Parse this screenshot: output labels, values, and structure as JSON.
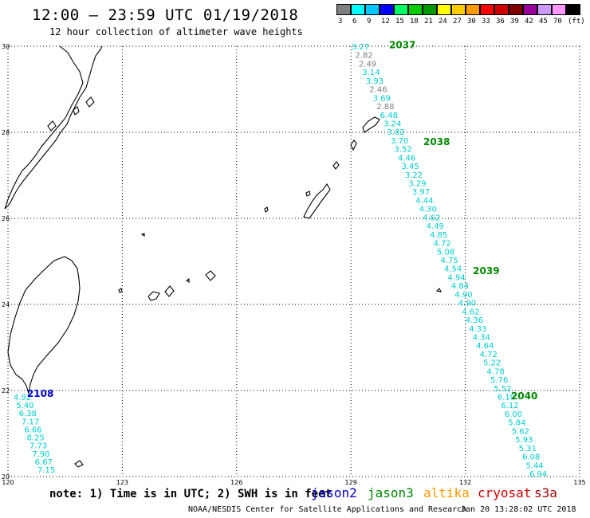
{
  "header": {
    "title": "12:00 — 23:59 UTC 01/19/2018",
    "subtitle": "12 hour collection of altimeter wave heights"
  },
  "legend": {
    "unit": "(ft)",
    "bins": [
      {
        "label": "3",
        "color": "#808080"
      },
      {
        "label": "6",
        "color": "#00ffff"
      },
      {
        "label": "9",
        "color": "#00c8ff"
      },
      {
        "label": "12",
        "color": "#0000ff"
      },
      {
        "label": "15",
        "color": "#00ff66"
      },
      {
        "label": "18",
        "color": "#00cc00"
      },
      {
        "label": "21",
        "color": "#009900"
      },
      {
        "label": "24",
        "color": "#ffff00"
      },
      {
        "label": "27",
        "color": "#ffcc00"
      },
      {
        "label": "30",
        "color": "#ff9900"
      },
      {
        "label": "33",
        "color": "#ff0000"
      },
      {
        "label": "36",
        "color": "#cc0000"
      },
      {
        "label": "39",
        "color": "#800000"
      },
      {
        "label": "42",
        "color": "#990099"
      },
      {
        "label": "45",
        "color": "#cc99ff"
      },
      {
        "label": "70",
        "color": "#ff99ff"
      },
      {
        "label": "",
        "color": "#000000"
      }
    ]
  },
  "map": {
    "lon_range": [
      120,
      135
    ],
    "lat_range": [
      20,
      30
    ],
    "lon_ticks": [
      "120",
      "123",
      "126",
      "129",
      "132",
      "135"
    ],
    "lat_ticks": [
      "30",
      "28",
      "26",
      "24",
      "22",
      "20"
    ],
    "track_colors": {
      "jason2": "#0000cc",
      "jason3": "#008800",
      "swh_cyan": "#00cccc",
      "swh_gray": "#808080"
    },
    "time_labels": [
      {
        "text": "2037",
        "lon": 130.0,
        "lat": 29.95,
        "track": "jason3"
      },
      {
        "text": "2038",
        "lon": 130.9,
        "lat": 27.7,
        "track": "jason3"
      },
      {
        "text": "2039",
        "lon": 132.2,
        "lat": 24.7,
        "track": "jason3"
      },
      {
        "text": "2040",
        "lon": 133.2,
        "lat": 21.8,
        "track": "jason3"
      },
      {
        "text": "2108",
        "lon": 120.5,
        "lat": 21.85,
        "track": "jason2"
      }
    ],
    "swh_track_1": [
      {
        "v": "3.27",
        "c": "cyan"
      },
      {
        "v": "2.82",
        "c": "gray"
      },
      {
        "v": "2.49",
        "c": "gray"
      },
      {
        "v": "3.14",
        "c": "cyan"
      },
      {
        "v": "3.93",
        "c": "cyan"
      },
      {
        "v": "2.46",
        "c": "gray"
      },
      {
        "v": "3.69",
        "c": "cyan"
      },
      {
        "v": "2.88",
        "c": "gray"
      },
      {
        "v": "6.48",
        "c": "cyan"
      },
      {
        "v": "3.24",
        "c": "cyan"
      },
      {
        "v": "3.82",
        "c": "cyan"
      },
      {
        "v": "3.70",
        "c": "cyan"
      },
      {
        "v": "3.52",
        "c": "cyan"
      },
      {
        "v": "4.46",
        "c": "cyan"
      },
      {
        "v": "3.45",
        "c": "cyan"
      },
      {
        "v": "3.22",
        "c": "cyan"
      },
      {
        "v": "3.29",
        "c": "cyan"
      },
      {
        "v": "3.97",
        "c": "cyan"
      },
      {
        "v": "4.44",
        "c": "cyan"
      },
      {
        "v": "4.30",
        "c": "cyan"
      },
      {
        "v": "4.62",
        "c": "cyan"
      },
      {
        "v": "4.49",
        "c": "cyan"
      },
      {
        "v": "4.85",
        "c": "cyan"
      },
      {
        "v": "4.72",
        "c": "cyan"
      },
      {
        "v": "5.08",
        "c": "cyan"
      },
      {
        "v": "4.75",
        "c": "cyan"
      },
      {
        "v": "4.54",
        "c": "cyan"
      },
      {
        "v": "4.94",
        "c": "cyan"
      },
      {
        "v": "4.84",
        "c": "cyan"
      },
      {
        "v": "4.90",
        "c": "cyan"
      },
      {
        "v": "4.90",
        "c": "cyan"
      },
      {
        "v": "4.62",
        "c": "cyan"
      },
      {
        "v": "4.36",
        "c": "cyan"
      },
      {
        "v": "4.33",
        "c": "cyan"
      },
      {
        "v": "4.34",
        "c": "cyan"
      },
      {
        "v": "4.64",
        "c": "cyan"
      },
      {
        "v": "4.72",
        "c": "cyan"
      },
      {
        "v": "5.22",
        "c": "cyan"
      },
      {
        "v": "4.78",
        "c": "cyan"
      },
      {
        "v": "5.76",
        "c": "cyan"
      },
      {
        "v": "5.52",
        "c": "cyan"
      },
      {
        "v": "6.10",
        "c": "cyan"
      },
      {
        "v": "6.12",
        "c": "cyan"
      },
      {
        "v": "6.00",
        "c": "cyan"
      },
      {
        "v": "5.84",
        "c": "cyan"
      },
      {
        "v": "5.62",
        "c": "cyan"
      },
      {
        "v": "5.93",
        "c": "cyan"
      },
      {
        "v": "5.31",
        "c": "cyan"
      },
      {
        "v": "6.08",
        "c": "cyan"
      },
      {
        "v": "5.44",
        "c": "cyan"
      },
      {
        "v": "6.94",
        "c": "cyan"
      }
    ],
    "swh_track_2": [
      {
        "v": "4.92",
        "c": "cyan"
      },
      {
        "v": "5.40",
        "c": "cyan"
      },
      {
        "v": "6.38",
        "c": "cyan"
      },
      {
        "v": "7.17",
        "c": "cyan"
      },
      {
        "v": "6.66",
        "c": "cyan"
      },
      {
        "v": "8.25",
        "c": "cyan"
      },
      {
        "v": "7.73",
        "c": "cyan"
      },
      {
        "v": "7.90",
        "c": "cyan"
      },
      {
        "v": "6.67",
        "c": "cyan"
      },
      {
        "v": "7.15",
        "c": "cyan"
      }
    ]
  },
  "footer": {
    "note": "note: 1) Time is in UTC; 2) SWH is in feet",
    "satellites": [
      {
        "name": "jason2",
        "color": "#0000cc"
      },
      {
        "name": "jason3",
        "color": "#008800"
      },
      {
        "name": "altika",
        "color": "#ff9900"
      },
      {
        "name": "cryosat",
        "color": "#cc0000"
      },
      {
        "name": "s3a",
        "color": "#990000"
      }
    ],
    "credit": "NOAA/NESDIS Center for Satellite Applications and Research",
    "timestamp": "Jan 20 13:28:02 UTC 2018"
  }
}
